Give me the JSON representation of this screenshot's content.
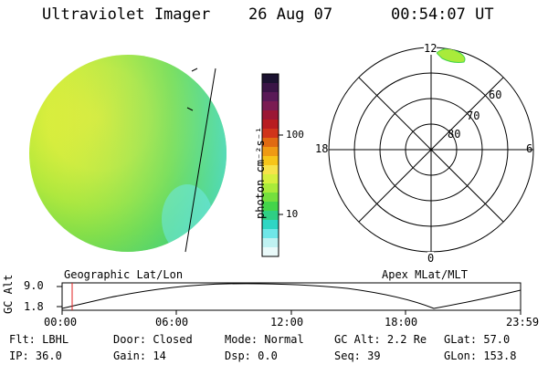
{
  "header": {
    "instrument": "Ultraviolet Imager",
    "date": "26 Aug 07",
    "time": "00:54:07 UT"
  },
  "colorbar": {
    "unit": "photon cm⁻²s⁻¹",
    "ticks": [
      "100",
      "10"
    ],
    "colors": [
      "#1b1230",
      "#3a1446",
      "#5a1a57",
      "#7a1c52",
      "#9b1735",
      "#b81c20",
      "#d0341a",
      "#e06a12",
      "#ef9a14",
      "#f6c51a",
      "#f6e34a",
      "#d6ef3e",
      "#a9eb3a",
      "#74e03d",
      "#43d54a",
      "#2fcf84",
      "#2fd6c4",
      "#6fe7e8",
      "#bff2f2",
      "#eafafa"
    ]
  },
  "polar": {
    "hour_labels": {
      "top": "12",
      "left": "18",
      "right": "6",
      "bottom": "0"
    },
    "lat_labels": [
      "60",
      "70",
      "80"
    ]
  },
  "panel_labels": {
    "left": "Geographic Lat/Lon",
    "right": "Apex MLat/MLT"
  },
  "orbit": {
    "ylabel": "GC Alt",
    "y_ticks": [
      "9.0",
      "1.8"
    ],
    "x_ticks": [
      "00:00",
      "06:00",
      "12:00",
      "18:00",
      "23:59"
    ]
  },
  "info": {
    "row1": [
      {
        "k": "Flt:",
        "v": "LBHL"
      },
      {
        "k": "Door:",
        "v": "Closed"
      },
      {
        "k": "Mode:",
        "v": "Normal"
      },
      {
        "k": "GC Alt:",
        "v": "2.2 Re"
      },
      {
        "k": "GLat:",
        "v": "57.0"
      }
    ],
    "row2": [
      {
        "k": "IP:",
        "v": "36.0"
      },
      {
        "k": "Gain:",
        "v": "14"
      },
      {
        "k": "Dsp:",
        "v": "0.0"
      },
      {
        "k": "Seq:",
        "v": "39"
      },
      {
        "k": "GLon:",
        "v": "153.8"
      }
    ]
  }
}
